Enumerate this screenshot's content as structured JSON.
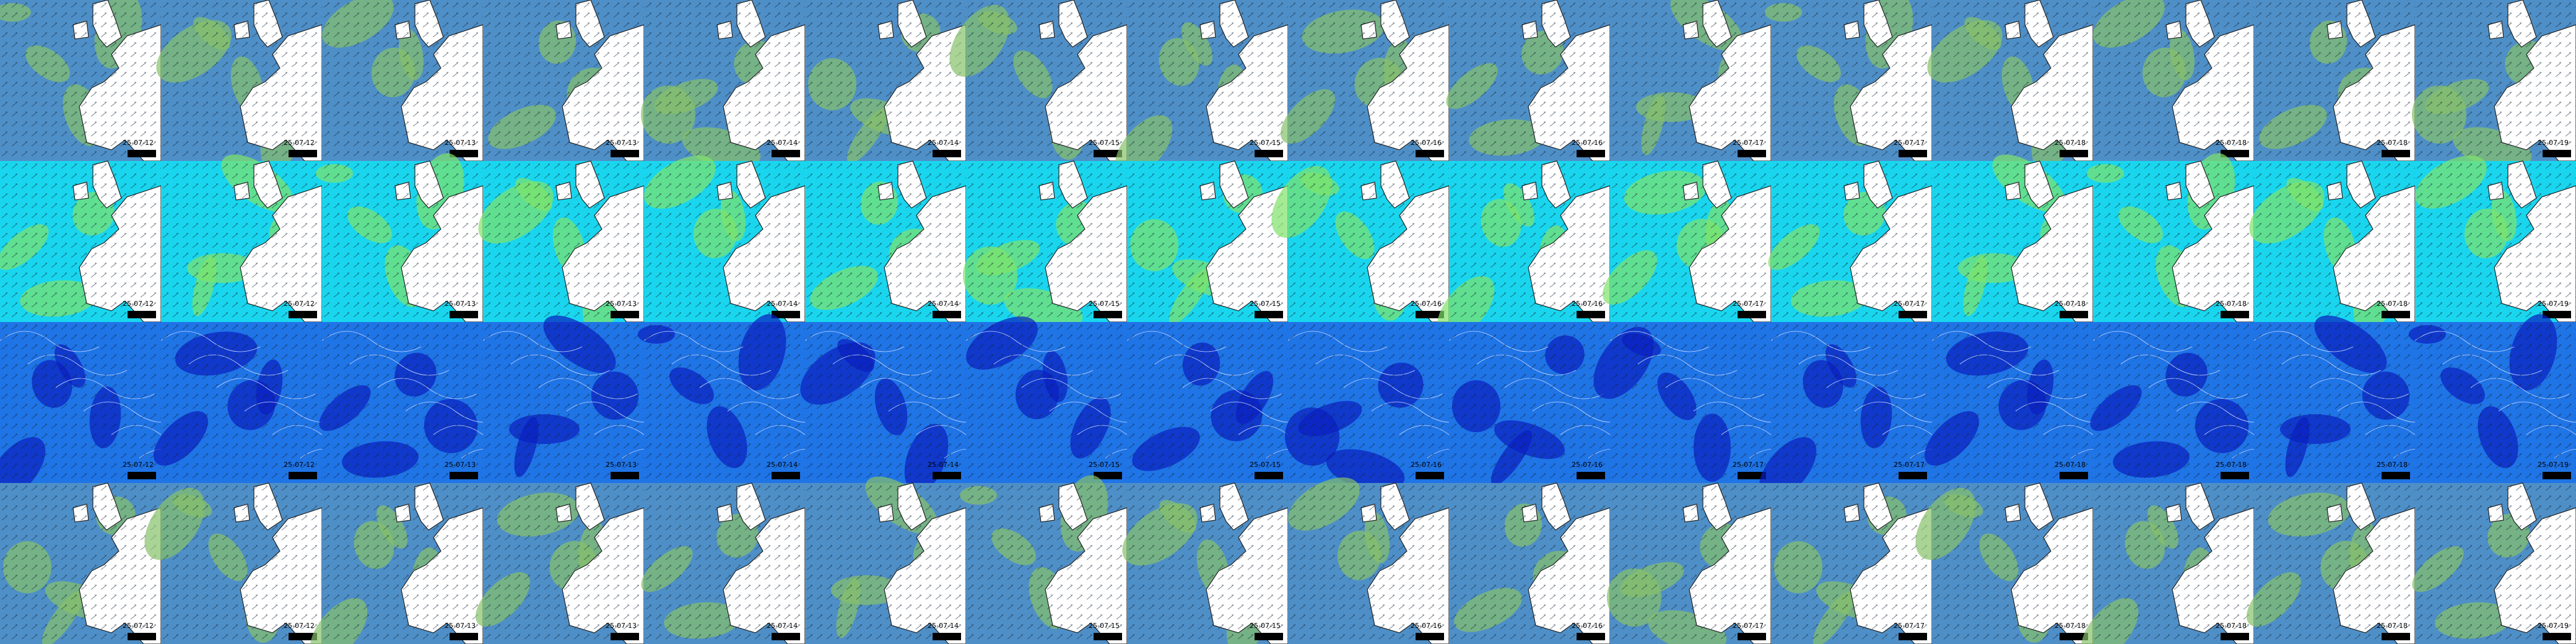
{
  "rows": [
    {
      "color": "#4f8fc7",
      "accent": "#86c06a"
    },
    {
      "color": "#19d6ee",
      "accent": "#7fe36a"
    },
    {
      "color": "#1f74e6",
      "accent": "#0a1fbf"
    },
    {
      "color": "#4f8fc7",
      "accent": "#86c06a"
    }
  ],
  "columns": [
    {
      "date": "25-07-12"
    },
    {
      "date": "25-07-12"
    },
    {
      "date": "25-07-13"
    },
    {
      "date": "25-07-13"
    },
    {
      "date": "25-07-14"
    },
    {
      "date": "25-07-14"
    },
    {
      "date": "25-07-15"
    },
    {
      "date": "25-07-15"
    },
    {
      "date": "25-07-16"
    },
    {
      "date": "25-07-16"
    },
    {
      "date": "25-07-17"
    },
    {
      "date": "25-07-17"
    },
    {
      "date": "25-07-18"
    },
    {
      "date": "25-07-18"
    },
    {
      "date": "25-07-18"
    },
    {
      "date": "25-07-19"
    }
  ]
}
